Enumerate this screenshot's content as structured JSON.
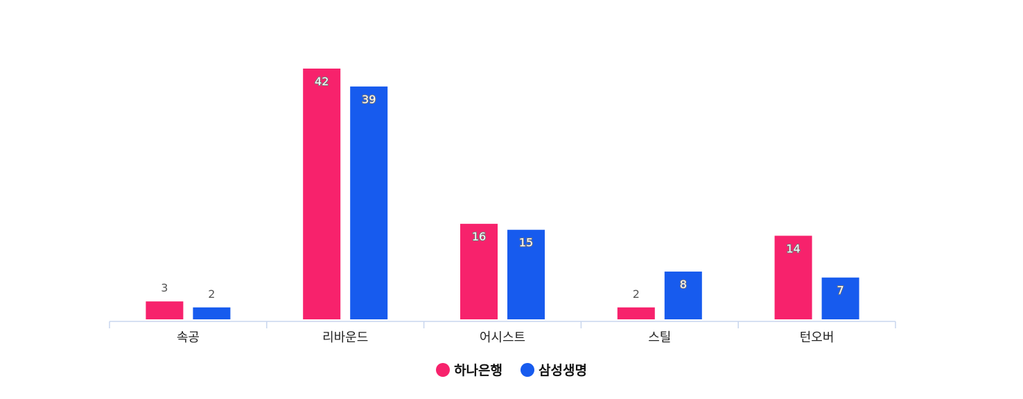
{
  "chart_data": {
    "type": "bar",
    "categories": [
      "속공",
      "리바운드",
      "어시스트",
      "스틸",
      "턴오버"
    ],
    "series": [
      {
        "name": "하나은행",
        "color": "#f7226c",
        "values": [
          3,
          42,
          16,
          2,
          14
        ]
      },
      {
        "name": "삼성생명",
        "color": "#175bee",
        "values": [
          2,
          39,
          15,
          8,
          7
        ]
      }
    ],
    "ylim": [
      0,
      42
    ],
    "grid": false,
    "legend_position": "bottom-center",
    "axis_color": "#c8d6ee"
  }
}
